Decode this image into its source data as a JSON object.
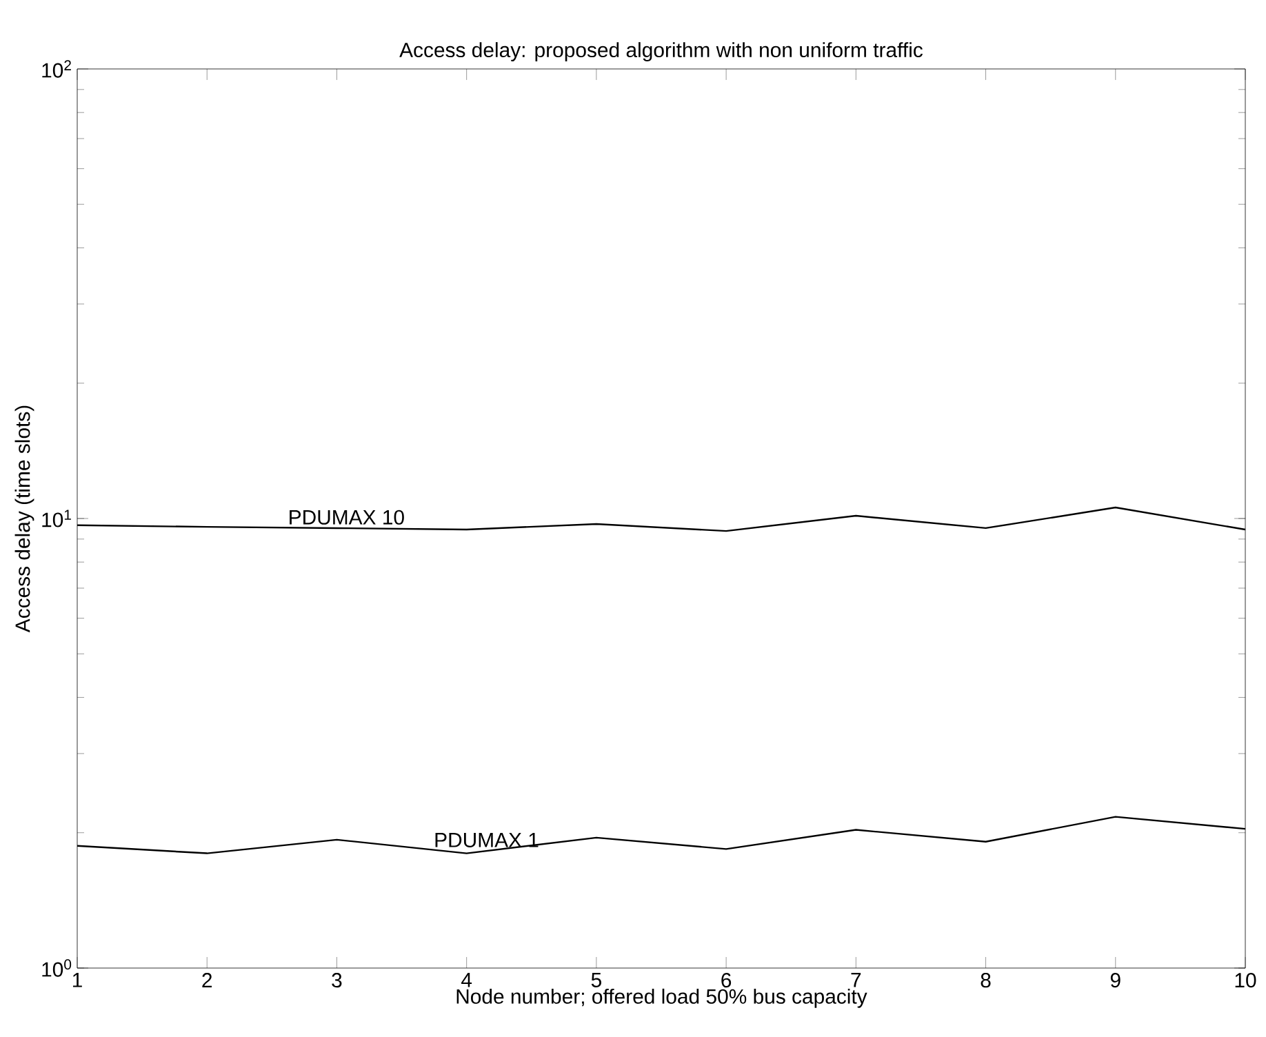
{
  "chart_data": {
    "type": "line",
    "title": "Access delay: proposed algorithm with non uniform traffic",
    "xlabel": "Node number; offered load 50% bus capacity",
    "ylabel": "Access delay   (time slots)",
    "x": [
      1,
      2,
      3,
      4,
      5,
      6,
      7,
      8,
      9,
      10
    ],
    "series": [
      {
        "name": "PDUMAX 10",
        "color": "#000000",
        "values": [
          9.66,
          9.58,
          9.52,
          9.45,
          9.72,
          9.38,
          10.14,
          9.52,
          10.58,
          9.45
        ]
      },
      {
        "name": "PDUMAX 1",
        "color": "#000000",
        "values": [
          1.87,
          1.8,
          1.93,
          1.8,
          1.95,
          1.84,
          2.03,
          1.91,
          2.17,
          2.04
        ]
      }
    ],
    "log": "y",
    "grid": false,
    "xlim": [
      1,
      10
    ],
    "xticks": [
      1,
      2,
      3,
      4,
      5,
      6,
      7,
      8,
      9,
      10
    ],
    "ylim": [
      1,
      100
    ],
    "yticks": [
      {
        "value": 1,
        "label": "10$^{0}$"
      },
      {
        "value": 10,
        "label": "10$^{1}$"
      },
      {
        "value": 100,
        "label": "10$^{2}$"
      }
    ]
  }
}
